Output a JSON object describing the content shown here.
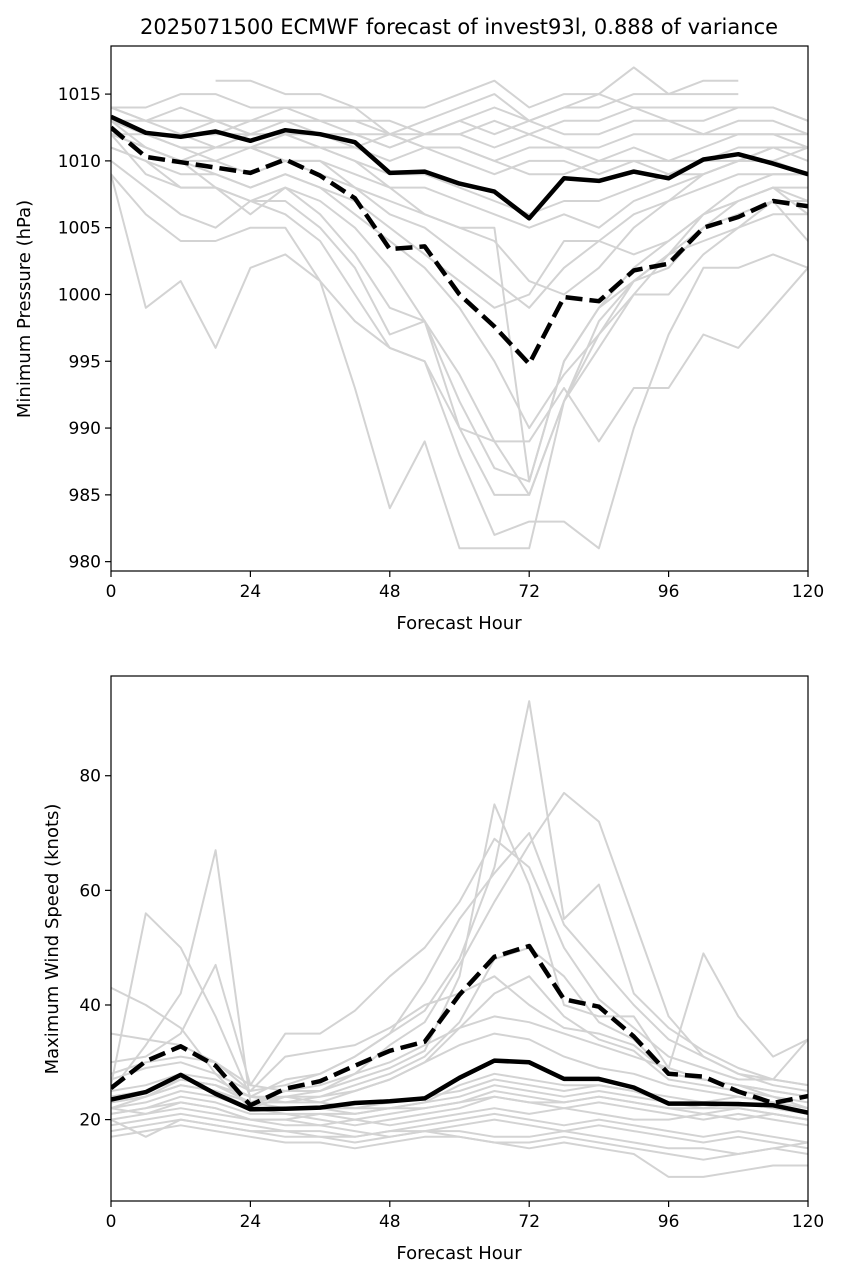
{
  "chart_data": [
    {
      "type": "line",
      "title": "2025071500 ECMWF forecast of invest93l, 0.888 of variance",
      "xlabel": "Forecast Hour",
      "ylabel": "Minimum Pressure (hPa)",
      "xlim": [
        0,
        120
      ],
      "ylim": [
        979.3,
        1018.6
      ],
      "xticks": [
        0,
        24,
        48,
        72,
        96,
        120
      ],
      "xtick_labels": [
        "0",
        "24",
        "48",
        "72",
        "96",
        "120"
      ],
      "yticks": [
        980,
        985,
        990,
        995,
        1000,
        1005,
        1010,
        1015
      ],
      "ytick_labels": [
        "980",
        "985",
        "990",
        "995",
        "1000",
        "1005",
        "1010",
        "1015"
      ],
      "grid": false,
      "legend": "none",
      "colors": {
        "ensemble": "#d3d3d3",
        "highlight": "#000000"
      },
      "x": [
        0,
        6,
        12,
        18,
        24,
        30,
        36,
        42,
        48,
        54,
        60,
        66,
        72,
        78,
        84,
        90,
        96,
        102,
        108,
        114,
        120
      ],
      "ensemble": [
        [
          1013,
          1012,
          1011,
          1011,
          1012,
          1012,
          1012,
          1011,
          1012,
          1011,
          1011,
          1010,
          1011,
          1011,
          1010,
          1011,
          1010,
          1010,
          1011,
          1011,
          1010
        ],
        [
          1012,
          1011,
          1010,
          1011,
          1011,
          1012,
          1011,
          1011,
          1010,
          1011,
          1010,
          1009,
          1010,
          1010,
          1009,
          1010,
          1009,
          1009,
          1010,
          1010,
          1009
        ],
        [
          1014,
          1013,
          1013,
          1013,
          1012,
          1013,
          1012,
          1012,
          1011,
          1012,
          1012,
          1013,
          1012,
          1013,
          1013,
          1014,
          1013,
          1013,
          1014,
          1014,
          1013
        ],
        [
          1013,
          1013,
          1012,
          1012,
          1013,
          1013,
          1013,
          1012,
          1012,
          1012,
          1013,
          1012,
          1013,
          1012,
          1012,
          1013,
          1013,
          1012,
          1012,
          1012,
          1012
        ],
        [
          1014,
          1013,
          1014,
          1013,
          1013,
          1014,
          1013,
          1013,
          1013,
          1012,
          1012,
          1011,
          1012,
          1011,
          1011,
          1012,
          1012,
          1012,
          1013,
          1013,
          1012
        ],
        [
          1014,
          1014,
          1015,
          1015,
          1014,
          1014,
          1014,
          1014,
          1014,
          1014,
          1015,
          1016,
          1014,
          1015,
          1015,
          1014,
          1014,
          1014,
          1014,
          1014,
          1013
        ],
        [
          1012,
          1012,
          1011,
          1011,
          1011,
          1010,
          1010,
          1009,
          1008,
          1008,
          1007,
          1006,
          1005,
          1006,
          1005,
          1007,
          1008,
          1009,
          1010,
          1010,
          1011
        ],
        [
          1013,
          1012,
          1012,
          1011,
          1011,
          1011,
          1011,
          1010,
          1009,
          1009,
          1008,
          1007,
          1006,
          1007,
          1007,
          1008,
          1009,
          1010,
          1010,
          1011,
          1011
        ],
        [
          1012,
          1011,
          1010,
          1010,
          1009,
          1010,
          1009,
          1008,
          1006,
          1005,
          1003,
          1001,
          999,
          1002,
          1004,
          1006,
          1007,
          1008,
          1009,
          1009,
          1009
        ],
        [
          1011,
          1010,
          1009,
          1009,
          1008,
          1009,
          1008,
          1007,
          1005,
          1003,
          1001,
          999,
          1000,
          1004,
          1004,
          1003,
          1004,
          1006,
          1007,
          1008,
          1008
        ],
        [
          1012,
          1011,
          1010,
          1009,
          1008,
          1009,
          1008,
          1006,
          1004,
          1002,
          999,
          995,
          990,
          994,
          997,
          1001,
          1003,
          1005,
          1006,
          1007,
          1007
        ],
        [
          1013,
          1011,
          1010,
          1008,
          1007,
          1008,
          1007,
          1005,
          1002,
          998,
          994,
          989,
          985,
          992,
          996,
          1000,
          1003,
          1004,
          1005,
          1006,
          1006
        ],
        [
          1011,
          1010,
          1008,
          1008,
          1006,
          1008,
          1006,
          1003,
          999,
          998,
          990,
          989,
          989,
          993,
          989,
          993,
          993,
          997,
          996,
          999,
          1002
        ],
        [
          1012,
          1009,
          1008,
          1008,
          1007,
          1007,
          1005,
          1002,
          997,
          998,
          992,
          987,
          986,
          995,
          999,
          1002,
          1004,
          1006,
          1007,
          1008,
          1007
        ],
        [
          1010,
          1008,
          1006,
          1005,
          1007,
          1006,
          1004,
          1000,
          996,
          995,
          990,
          985,
          985,
          992,
          998,
          1001,
          1002,
          1005,
          1007,
          1008,
          1006
        ],
        [
          1009,
          1006,
          1004,
          1004,
          1005,
          1005,
          1001,
          998,
          996,
          995,
          988,
          982,
          983,
          983,
          981,
          990,
          997,
          1002,
          1002,
          1003,
          1002
        ],
        [
          1009,
          999,
          1001,
          996,
          1002,
          1003,
          1001,
          993,
          984,
          989,
          981,
          981,
          981,
          992,
          997,
          1000,
          1000,
          1003,
          1005,
          1007,
          1004
        ],
        [
          1013,
          1012,
          1011,
          1010,
          1011,
          1010,
          1010,
          1008,
          1007,
          1006,
          1005,
          1005,
          986,
          995,
          999,
          1001,
          1003,
          1006,
          1008,
          1009,
          1009
        ],
        [
          null,
          null,
          null,
          1016,
          1016,
          1015,
          1015,
          1014,
          1012,
          1013,
          1014,
          1015,
          1013,
          1014,
          1015,
          1017,
          1015,
          1016,
          1016,
          null,
          null
        ],
        [
          null,
          null,
          null,
          1013,
          1012,
          1012,
          1012,
          1012,
          1011,
          1012,
          1013,
          1014,
          1013,
          1014,
          1014,
          1015,
          1015,
          1015,
          1015,
          null,
          null
        ],
        [
          1013,
          1012,
          1012,
          1012,
          1012,
          1012,
          1011,
          1010,
          1008,
          1006,
          1005,
          1004,
          1001,
          1000,
          1002,
          1005,
          1007,
          1009,
          1010,
          1011,
          1011
        ],
        [
          1013,
          1012,
          1012,
          1013,
          1013,
          1013,
          1013,
          1013,
          1012,
          1011,
          1011,
          1010,
          1009,
          1009,
          1010,
          1010,
          1010,
          1011,
          1012,
          1012,
          1011
        ]
      ],
      "series": [
        {
          "style": "solid",
          "values": [
            1013.3,
            1012.1,
            1011.8,
            1012.2,
            1011.5,
            1012.3,
            1012.0,
            1011.4,
            1009.1,
            1009.2,
            1008.3,
            1007.7,
            1005.7,
            1008.7,
            1008.5,
            1009.2,
            1008.7,
            1010.1,
            1010.5,
            1009.8,
            1009.0
          ]
        },
        {
          "style": "dashed",
          "values": [
            1012.5,
            1010.3,
            1009.9,
            1009.5,
            1009.1,
            1010.1,
            1008.9,
            1007.2,
            1003.4,
            1003.6,
            1000.0,
            997.6,
            994.8,
            999.8,
            999.5,
            1001.8,
            1002.3,
            1005.0,
            1005.8,
            1007.0,
            1006.6
          ]
        }
      ]
    },
    {
      "type": "line",
      "title": "",
      "xlabel": "Forecast Hour",
      "ylabel": "Maximum Wind Speed (knots)",
      "xlim": [
        0,
        120
      ],
      "ylim": [
        5.8,
        97.4
      ],
      "xticks": [
        0,
        24,
        48,
        72,
        96,
        120
      ],
      "xtick_labels": [
        "0",
        "24",
        "48",
        "72",
        "96",
        "120"
      ],
      "yticks": [
        20,
        40,
        60,
        80
      ],
      "ytick_labels": [
        "20",
        "40",
        "60",
        "80"
      ],
      "grid": false,
      "legend": "none",
      "colors": {
        "ensemble": "#d3d3d3",
        "highlight": "#000000"
      },
      "x": [
        0,
        6,
        12,
        18,
        24,
        30,
        36,
        42,
        48,
        54,
        60,
        66,
        72,
        78,
        84,
        90,
        96,
        102,
        108,
        114,
        120
      ],
      "ensemble": [
        [
          20,
          21,
          22,
          21,
          20,
          20,
          19,
          20,
          19,
          20,
          21,
          22,
          21,
          22,
          21,
          20,
          20,
          21,
          20,
          21,
          20
        ],
        [
          21,
          22,
          24,
          23,
          21,
          21,
          20,
          19,
          20,
          21,
          22,
          24,
          23,
          22,
          23,
          22,
          21,
          20,
          21,
          20,
          19
        ],
        [
          22,
          23,
          25,
          24,
          22,
          21,
          21,
          20,
          21,
          22,
          23,
          25,
          24,
          23,
          24,
          23,
          22,
          21,
          22,
          21,
          20
        ],
        [
          23,
          24,
          26,
          25,
          23,
          22,
          22,
          21,
          22,
          23,
          24,
          26,
          25,
          24,
          25,
          24,
          23,
          22,
          23,
          22,
          21
        ],
        [
          19,
          20,
          21,
          20,
          19,
          18,
          18,
          17,
          18,
          19,
          20,
          21,
          20,
          19,
          20,
          19,
          18,
          17,
          18,
          17,
          16
        ],
        [
          18,
          19,
          20,
          19,
          18,
          17,
          17,
          16,
          17,
          18,
          19,
          20,
          19,
          18,
          19,
          18,
          17,
          16,
          17,
          16,
          15
        ],
        [
          17,
          18,
          19,
          18,
          17,
          16,
          16,
          15,
          16,
          17,
          17,
          16,
          16,
          17,
          16,
          15,
          14,
          13,
          14,
          15,
          14
        ],
        [
          22,
          21,
          23,
          22,
          20,
          19,
          19,
          18,
          17,
          18,
          18,
          17,
          17,
          18,
          17,
          16,
          15,
          15,
          14,
          15,
          16
        ],
        [
          24,
          25,
          27,
          26,
          24,
          23,
          23,
          22,
          23,
          24,
          25,
          27,
          26,
          25,
          26,
          25,
          24,
          23,
          24,
          23,
          22
        ],
        [
          20,
          17,
          20,
          19,
          18,
          18,
          17,
          17,
          18,
          18,
          17,
          16,
          15,
          16,
          15,
          14,
          10,
          10,
          11,
          12,
          12
        ],
        [
          43,
          40,
          36,
          28,
          22,
          24,
          23,
          25,
          27,
          30,
          33,
          35,
          34,
          31,
          29,
          28,
          26,
          25,
          24,
          23,
          22
        ],
        [
          35,
          34,
          33,
          30,
          26,
          25,
          26,
          28,
          30,
          33,
          36,
          38,
          37,
          35,
          33,
          31,
          29,
          27,
          26,
          25,
          24
        ],
        [
          26,
          56,
          50,
          38,
          24,
          27,
          28,
          31,
          35,
          44,
          55,
          63,
          70,
          54,
          47,
          40,
          34,
          31,
          28,
          26,
          25
        ],
        [
          25,
          33,
          42,
          67,
          23,
          25,
          25,
          28,
          33,
          37,
          47,
          58,
          68,
          77,
          72,
          55,
          38,
          31,
          28,
          27,
          26
        ],
        [
          27,
          29,
          30,
          28,
          25,
          26,
          28,
          31,
          35,
          39,
          48,
          64,
          93,
          55,
          61,
          42,
          36,
          32,
          29,
          27,
          26
        ],
        [
          30,
          31,
          35,
          47,
          26,
          35,
          35,
          39,
          45,
          50,
          58,
          69,
          64,
          50,
          41,
          36,
          31,
          29,
          27,
          27,
          34
        ],
        [
          22,
          24,
          27,
          26,
          23,
          24,
          25,
          27,
          29,
          32,
          45,
          75,
          61,
          40,
          38,
          38,
          29,
          49,
          38,
          31,
          34
        ],
        [
          24,
          25,
          27,
          26,
          23,
          23,
          24,
          26,
          28,
          31,
          37,
          48,
          50,
          45,
          37,
          34,
          28,
          27,
          26,
          25,
          24
        ],
        [
          25,
          26,
          28,
          27,
          24,
          24,
          24,
          25,
          27,
          30,
          36,
          42,
          45,
          38,
          34,
          32,
          27,
          26,
          25,
          24,
          23
        ],
        [
          28,
          30,
          31,
          30,
          25,
          31,
          32,
          33,
          36,
          40,
          42,
          45,
          40,
          36,
          35,
          33,
          28,
          27,
          26,
          24,
          22
        ],
        [
          21,
          22,
          23,
          22,
          20,
          20,
          21,
          21,
          22,
          22,
          23,
          24,
          23,
          23,
          24,
          23,
          22,
          22,
          22,
          21,
          20
        ],
        [
          23,
          24,
          26,
          25,
          22,
          22,
          22,
          22,
          22,
          23,
          26,
          28,
          27,
          26,
          26,
          25,
          23,
          23,
          23,
          22,
          21
        ]
      ],
      "series": [
        {
          "style": "solid",
          "values": [
            23.5,
            24.8,
            27.8,
            24.5,
            21.8,
            21.9,
            22.1,
            22.9,
            23.2,
            23.7,
            27.3,
            30.3,
            30.0,
            27.1,
            27.1,
            25.6,
            22.8,
            22.8,
            22.7,
            22.5,
            21.2
          ]
        },
        {
          "style": "dashed",
          "values": [
            25.5,
            30.2,
            32.8,
            29.4,
            22.5,
            25.4,
            26.7,
            29.4,
            32.0,
            33.6,
            41.8,
            48.4,
            50.3,
            41.0,
            39.7,
            34.5,
            28.0,
            27.5,
            24.9,
            22.9,
            24.1
          ]
        }
      ]
    }
  ]
}
